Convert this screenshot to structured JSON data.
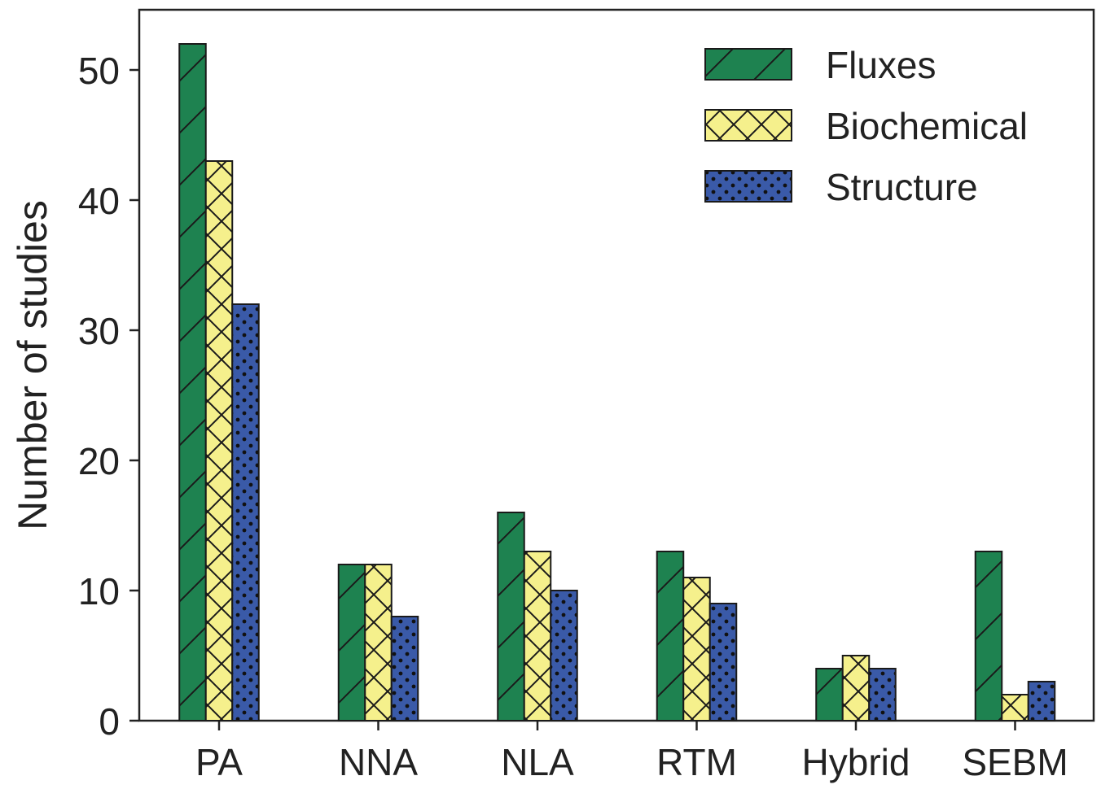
{
  "chart_data": {
    "type": "bar",
    "title": "",
    "xlabel": "",
    "ylabel": "Number of studies",
    "categories": [
      "PA",
      "NNA",
      "NLA",
      "RTM",
      "Hybrid",
      "SEBM"
    ],
    "series": [
      {
        "name": "Fluxes",
        "values": [
          52,
          12,
          16,
          13,
          4,
          13
        ],
        "color": "#1e8250",
        "pattern": "diagonal-hatch"
      },
      {
        "name": "Biochemical",
        "values": [
          43,
          12,
          13,
          11,
          5,
          2
        ],
        "color": "#f5f08c",
        "pattern": "cross-hatch"
      },
      {
        "name": "Structure",
        "values": [
          32,
          8,
          10,
          9,
          4,
          3
        ],
        "color": "#3a5aa8",
        "pattern": "dots"
      }
    ],
    "yticks": [
      0,
      10,
      20,
      30,
      40,
      50
    ],
    "ylim": [
      0,
      54.5
    ],
    "grid": false,
    "legend_position": "top-right"
  }
}
